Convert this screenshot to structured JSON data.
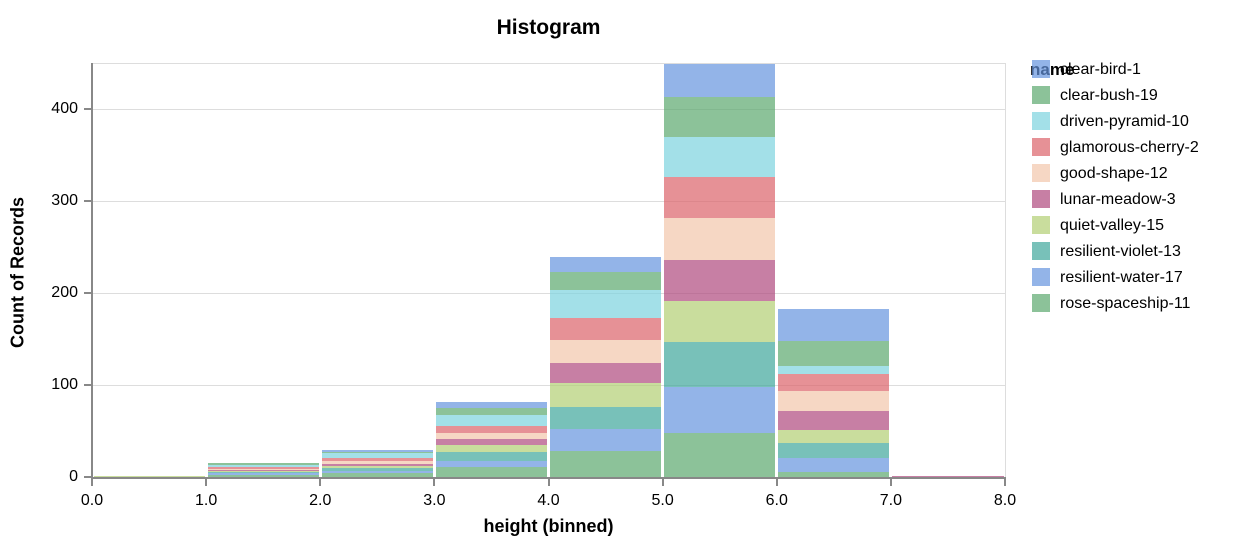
{
  "title": "Histogram",
  "legend": {
    "title": "name"
  },
  "colors": {
    "grid": "#dddddd",
    "axis_domain": "#888888",
    "view_border": "#dddddd",
    "text": "#000000"
  },
  "chart_data": {
    "type": "bar",
    "stacked": true,
    "title": "Histogram",
    "xlabel": "height (binned)",
    "ylabel": "Count of Records",
    "bar_opacity": 0.7,
    "x_bin_edges": [
      0,
      1,
      2,
      3,
      4,
      5,
      6,
      7,
      8
    ],
    "x_tick_labels": [
      "0.0",
      "1.0",
      "2.0",
      "3.0",
      "4.0",
      "5.0",
      "6.0",
      "7.0",
      "8.0"
    ],
    "y_ticks": [
      0,
      100,
      200,
      300,
      400
    ],
    "y_tick_labels": [
      "0",
      "100",
      "200",
      "300",
      "400"
    ],
    "ylim": [
      0,
      450
    ],
    "legend_position": "right",
    "grid": true,
    "series": [
      {
        "name": "clear-bird-1",
        "color": "#6594de",
        "values": [
          0,
          0,
          2,
          7,
          16,
          36,
          35,
          0
        ]
      },
      {
        "name": "clear-bush-19",
        "color": "#5ba86d",
        "values": [
          0,
          2,
          1,
          7,
          20,
          43,
          27,
          0
        ]
      },
      {
        "name": "driven-pyramid-10",
        "color": "#7cd3de",
        "values": [
          0,
          2,
          5,
          13,
          30,
          44,
          9,
          0
        ]
      },
      {
        "name": "glamorous-cherry-2",
        "color": "#db6269",
        "values": [
          0,
          2,
          4,
          7,
          24,
          44,
          18,
          0
        ]
      },
      {
        "name": "good-shape-12",
        "color": "#f2c6ab",
        "values": [
          0,
          1,
          3,
          7,
          25,
          46,
          22,
          0
        ]
      },
      {
        "name": "lunar-meadow-3",
        "color": "#af487d",
        "values": [
          0,
          1,
          2,
          6,
          22,
          45,
          21,
          1
        ]
      },
      {
        "name": "quiet-valley-15",
        "color": "#b2ce73",
        "values": [
          2,
          1,
          2,
          8,
          26,
          44,
          14,
          0
        ]
      },
      {
        "name": "resilient-violet-13",
        "color": "#3ea69b",
        "values": [
          0,
          2,
          3,
          9,
          24,
          49,
          16,
          0
        ]
      },
      {
        "name": "resilient-water-17",
        "color": "#6594de",
        "values": [
          0,
          2,
          3,
          7,
          24,
          50,
          16,
          1
        ]
      },
      {
        "name": "rose-spaceship-11",
        "color": "#5ba86d",
        "values": [
          0,
          3,
          5,
          12,
          29,
          49,
          6,
          0
        ]
      }
    ],
    "bin_totals": [
      2,
      16,
      30,
      83,
      240,
      450,
      184,
      2
    ]
  }
}
